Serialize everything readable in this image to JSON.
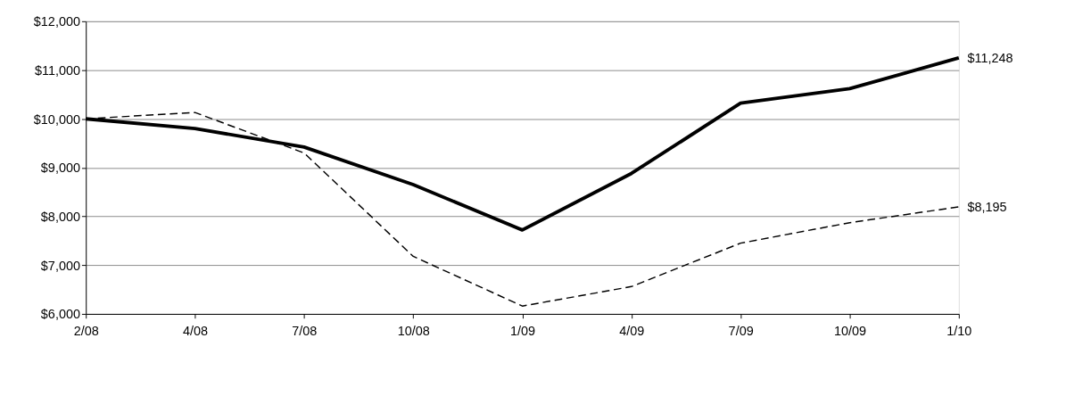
{
  "chart_data": {
    "type": "line",
    "categories": [
      "2/08",
      "4/08",
      "7/08",
      "10/08",
      "1/09",
      "4/09",
      "7/09",
      "10/09",
      "1/10"
    ],
    "ylim": [
      6000,
      12000
    ],
    "yticks": [
      {
        "value": 6000,
        "label": "$6,000"
      },
      {
        "value": 7000,
        "label": "$7,000"
      },
      {
        "value": 8000,
        "label": "$8,000"
      },
      {
        "value": 9000,
        "label": "$9,000"
      },
      {
        "value": 10000,
        "label": "$10,000"
      },
      {
        "value": 11000,
        "label": "$11,000"
      },
      {
        "value": 12000,
        "label": "$12,000"
      }
    ],
    "grid": "y",
    "marker": "none",
    "series": [
      {
        "color": "#000000",
        "line_style": "solid",
        "values": [
          10000,
          9800,
          9420,
          8650,
          7720,
          8880,
          10320,
          10620,
          11248
        ],
        "value_labels": [
          null,
          null,
          null,
          null,
          null,
          null,
          null,
          null,
          "$11,248"
        ]
      },
      {
        "color": "#000000",
        "line_style": "dashed",
        "values": [
          10000,
          10130,
          9300,
          7180,
          6160,
          6560,
          7450,
          7870,
          8195
        ],
        "value_labels": [
          null,
          null,
          null,
          null,
          null,
          null,
          null,
          null,
          "$8,195"
        ]
      }
    ]
  }
}
